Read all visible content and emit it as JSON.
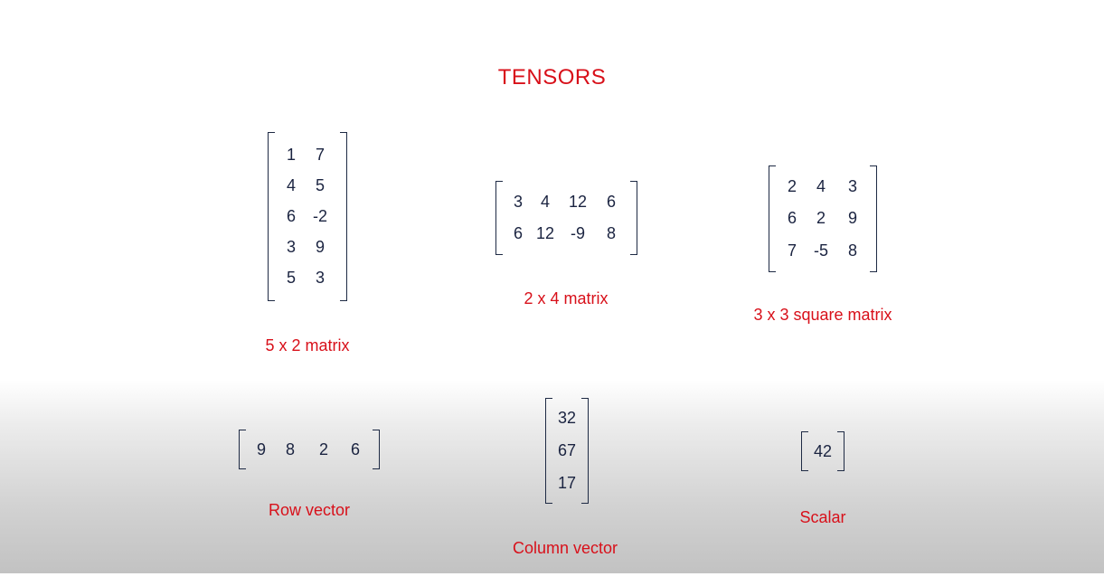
{
  "title": "TENSORS",
  "matrices": {
    "m5x2": {
      "rows": [
        [
          "1",
          "7"
        ],
        [
          "4",
          "5"
        ],
        [
          "6",
          "-2"
        ],
        [
          "3",
          "9"
        ],
        [
          "5",
          "3"
        ]
      ],
      "label": "5 x 2 matrix"
    },
    "m2x4": {
      "rows": [
        [
          "3",
          "4",
          "12",
          "6"
        ],
        [
          "6",
          "12",
          "-9",
          "8"
        ]
      ],
      "label": "2 x 4 matrix"
    },
    "m3x3": {
      "rows": [
        [
          "2",
          "4",
          "3"
        ],
        [
          "6",
          "2",
          "9"
        ],
        [
          "7",
          "-5",
          "8"
        ]
      ],
      "label": "3 x 3 square matrix"
    },
    "row_vector": {
      "rows": [
        [
          "9",
          "8",
          "2",
          "6"
        ]
      ],
      "label": "Row vector"
    },
    "column_vector": {
      "rows": [
        [
          "32"
        ],
        [
          "67"
        ],
        [
          "17"
        ]
      ],
      "label": "Column vector"
    },
    "scalar": {
      "rows": [
        [
          "42"
        ]
      ],
      "label": "Scalar"
    }
  }
}
